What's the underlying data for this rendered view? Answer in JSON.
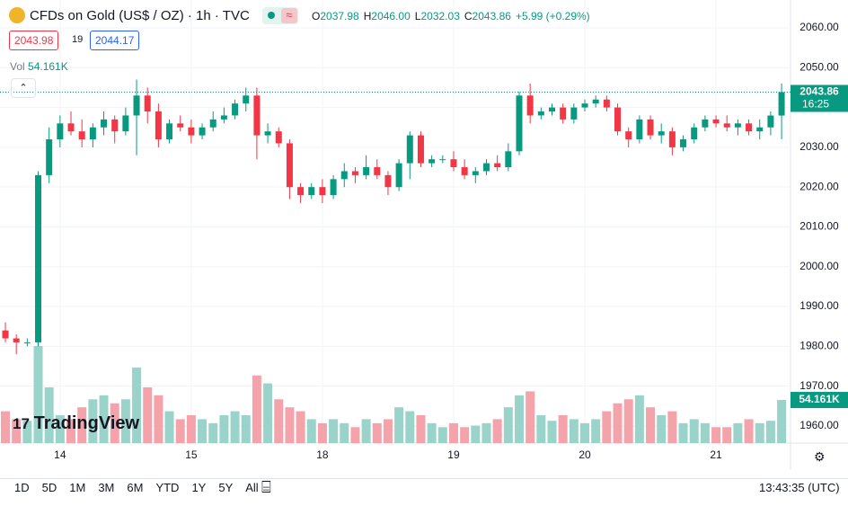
{
  "header": {
    "title": "CFDs on Gold (US$ / OZ) · 1h · TVC",
    "ohlc": [
      {
        "key": "O",
        "value": "2037.98"
      },
      {
        "key": "H",
        "value": "2046.00"
      },
      {
        "key": "L",
        "value": "2032.03"
      },
      {
        "key": "C",
        "value": "2043.86"
      }
    ],
    "change": "+5.99 (+0.29%)",
    "sell": "2043.98",
    "spread": "19",
    "buy": "2044.17",
    "vol_label": "Vol",
    "vol_value": "54.161K",
    "logo": "TradingView"
  },
  "chart_data": {
    "type": "candlestick",
    "categories": [
      null,
      null,
      null,
      null,
      null,
      "14",
      null,
      null,
      null,
      null,
      null,
      null,
      null,
      null,
      null,
      null,
      null,
      "15",
      null,
      null,
      null,
      null,
      null,
      null,
      null,
      null,
      null,
      null,
      null,
      "18",
      null,
      null,
      null,
      null,
      null,
      null,
      null,
      null,
      null,
      null,
      null,
      "19",
      null,
      null,
      null,
      null,
      null,
      null,
      null,
      null,
      null,
      null,
      null,
      "20",
      null,
      null,
      null,
      null,
      null,
      null,
      null,
      null,
      null,
      null,
      null,
      "21",
      null,
      null,
      null,
      null,
      null,
      null
    ],
    "open": [
      1984,
      1982,
      1981,
      1981,
      2023,
      2032,
      2036,
      2034,
      2032,
      2035,
      2037,
      2034,
      2038,
      2043,
      2039,
      2032,
      2036,
      2035,
      2033,
      2035,
      2037,
      2038,
      2041,
      2043,
      2033,
      2034,
      2031,
      2020,
      2018,
      2020,
      2018,
      2022,
      2024,
      2023,
      2025,
      2023,
      2020,
      2026,
      2033,
      2026,
      2027,
      2027,
      2025,
      2023,
      2024,
      2026,
      2025,
      2029,
      2043,
      2038,
      2039,
      2040,
      2037,
      2040,
      2041,
      2042,
      2040,
      2034,
      2032,
      2037,
      2033,
      2034,
      2030,
      2032,
      2035,
      2037,
      2036,
      2035,
      2036,
      2034,
      2035,
      2037.98
    ],
    "high": [
      1986,
      1983,
      1982,
      2024,
      2035,
      2038,
      2039,
      2037,
      2036,
      2039,
      2038,
      2040,
      2047,
      2045,
      2041,
      2037,
      2038,
      2037,
      2036,
      2039,
      2040,
      2042,
      2045,
      2045,
      2036,
      2035,
      2032,
      2021,
      2021,
      2022,
      2023,
      2026,
      2025,
      2028,
      2027,
      2024,
      2027,
      2034,
      2034,
      2028,
      2028,
      2029,
      2027,
      2025,
      2027,
      2028,
      2031,
      2044,
      2046,
      2040,
      2041,
      2041,
      2041,
      2042,
      2043,
      2043,
      2041,
      2035,
      2038,
      2038,
      2036,
      2035,
      2033,
      2036,
      2038,
      2038,
      2038,
      2037,
      2037,
      2037,
      2039,
      2046
    ],
    "low": [
      1981,
      1978,
      1980,
      1980,
      2021,
      2030,
      2033,
      2030,
      2030,
      2033,
      2031,
      2033,
      2028,
      2036,
      2030,
      2031,
      2034,
      2031,
      2032,
      2034,
      2036,
      2037,
      2039,
      2027,
      2031,
      2030,
      2017,
      2016,
      2017,
      2016,
      2017,
      2020,
      2021,
      2022,
      2022,
      2018,
      2019,
      2022,
      2025,
      2025,
      2026,
      2024,
      2022,
      2021,
      2023,
      2024,
      2024,
      2028,
      2036,
      2037,
      2038,
      2036,
      2036,
      2039,
      2040,
      2039,
      2033,
      2030,
      2031,
      2032,
      2031,
      2028,
      2029,
      2031,
      2034,
      2035,
      2034,
      2033,
      2033,
      2032,
      2033,
      2032.03
    ],
    "close": [
      1982,
      1981,
      1981,
      2023,
      2032,
      2036,
      2034,
      2032,
      2035,
      2037,
      2034,
      2038,
      2043,
      2039,
      2032,
      2036,
      2035,
      2033,
      2035,
      2037,
      2038,
      2041,
      2043,
      2033,
      2034,
      2031,
      2020,
      2018,
      2020,
      2018,
      2022,
      2024,
      2023,
      2025,
      2023,
      2020,
      2026,
      2033,
      2026,
      2027,
      2027,
      2025,
      2023,
      2024,
      2026,
      2025,
      2029,
      2043,
      2038,
      2039,
      2040,
      2037,
      2040,
      2041,
      2042,
      2040,
      2034,
      2032,
      2037,
      2033,
      2034,
      2030,
      2032,
      2035,
      2037,
      2036,
      2035,
      2036,
      2034,
      2035,
      2037.98,
      2043.86
    ],
    "volume": [
      40,
      30,
      28,
      122,
      70,
      35,
      30,
      45,
      55,
      60,
      50,
      55,
      95,
      70,
      60,
      40,
      30,
      35,
      30,
      25,
      35,
      40,
      35,
      85,
      75,
      55,
      45,
      40,
      30,
      25,
      30,
      25,
      20,
      30,
      25,
      30,
      45,
      40,
      35,
      25,
      20,
      25,
      20,
      22,
      25,
      30,
      45,
      60,
      65,
      35,
      28,
      35,
      30,
      25,
      30,
      40,
      50,
      55,
      60,
      45,
      35,
      40,
      25,
      30,
      25,
      20,
      20,
      25,
      30,
      25,
      28,
      54.161
    ],
    "ylim": [
      1955.7,
      2067
    ],
    "yticks": [
      {
        "value": 1960,
        "label": "1960.00"
      },
      {
        "value": 1970,
        "label": "1970.00"
      },
      {
        "value": 1980,
        "label": "1980.00"
      },
      {
        "value": 1990,
        "label": "1990.00"
      },
      {
        "value": 2000,
        "label": "2000.00"
      },
      {
        "value": 2010,
        "label": "2010.00"
      },
      {
        "value": 2020,
        "label": "2020.00"
      },
      {
        "value": 2030,
        "label": "2030.00"
      },
      {
        "value": 2040,
        "label": "2040.00"
      },
      {
        "value": 2050,
        "label": "2050.00"
      },
      {
        "value": 2060,
        "label": "2060.00"
      }
    ],
    "volume_lim": [
      0,
      140
    ],
    "up_color": "#089981",
    "down_color": "#f23645",
    "up_volume_color": "#9ad3c9",
    "down_volume_color": "#f5a3aa",
    "grid": true,
    "countdown": "16:25"
  },
  "toolbar": {
    "ranges": [
      "1D",
      "5D",
      "1M",
      "3M",
      "6M",
      "YTD",
      "1Y",
      "5Y",
      "All"
    ],
    "time": "13:43:35 (UTC)"
  }
}
